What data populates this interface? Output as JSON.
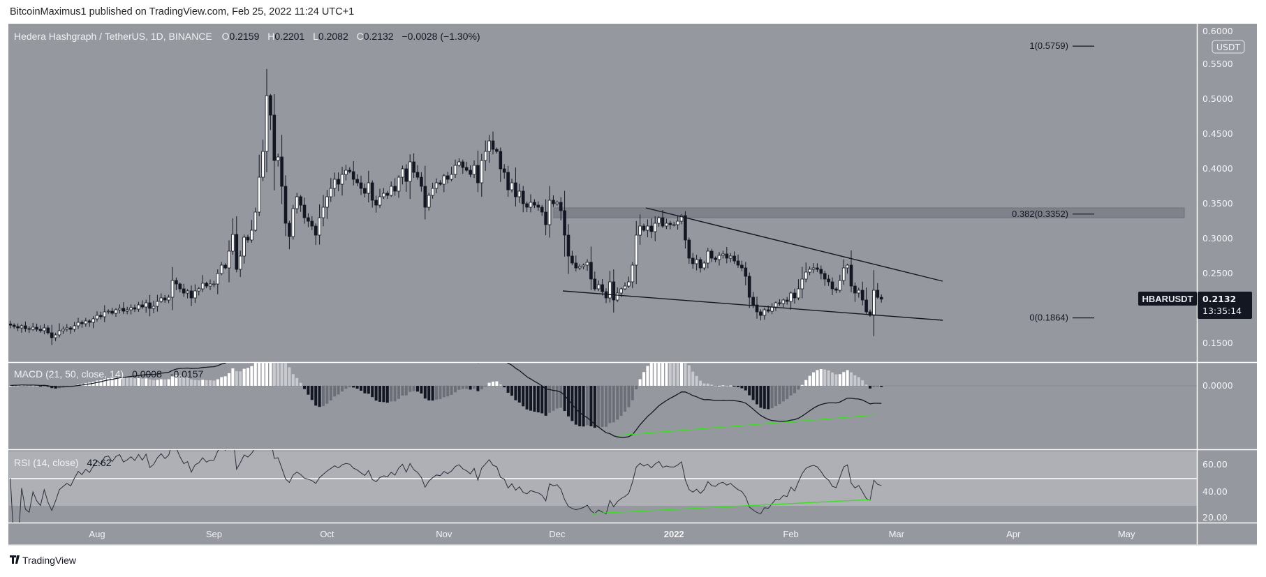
{
  "header": {
    "published": "BitcoinMaximus1 published on TradingView.com, Feb 25, 2022 11:24 UTC+1"
  },
  "footer": {
    "logo_text": "TradingView"
  },
  "legend": {
    "symbol": "Hedera Hashgraph / TetherUS, 1D, BINANCE",
    "o_label": "O",
    "o": "0.2159",
    "h_label": "H",
    "h": "0.2201",
    "l_label": "L",
    "l": "0.2082",
    "c_label": "C",
    "c": "0.2132",
    "change": "−0.0028 (−1.30%)"
  },
  "macd_legend": {
    "title": "MACD (21, 50, close, 14)",
    "v1": "0.0008",
    "v2": "-0.0157"
  },
  "rsi_legend": {
    "title": "RSI (14, close)",
    "value": "42.62"
  },
  "price_axis": {
    "currency": "USDT",
    "ticks": [
      "0.6000",
      "0.5500",
      "0.5000",
      "0.4500",
      "0.4000",
      "0.3500",
      "0.3000",
      "0.2500",
      "0.1500"
    ],
    "macd_ticks": [
      "0.0000"
    ],
    "rsi_ticks": [
      "60.00",
      "40.00",
      "20.00"
    ]
  },
  "last_price": {
    "symbol": "HBARUSDT",
    "price": "0.2132",
    "countdown": "13:35:14"
  },
  "time_axis": [
    "Aug",
    "Sep",
    "Oct",
    "Nov",
    "Dec",
    "2022",
    "Feb",
    "Mar",
    "Apr",
    "May"
  ],
  "fib_levels": [
    {
      "label": "1(0.5759)",
      "value": 0.5759
    },
    {
      "label": "0.382(0.3352)",
      "value": 0.3352
    },
    {
      "label": "0(0.1864)",
      "value": 0.1864
    }
  ],
  "colors": {
    "pane_bg": "#95989f",
    "up": "#ffffff",
    "down": "#131722",
    "divergence": "#39e01e",
    "rsi_band": "#aeb0b6"
  },
  "chart_data": {
    "type": "candlestick",
    "interval": "1D",
    "start_date": "2021-07-09",
    "end_date": "2022-02-25",
    "y_range": [
      0.13,
      0.6
    ],
    "scale": "linear",
    "last_candle": {
      "o": 0.2159,
      "h": 0.2201,
      "l": 0.2082,
      "c": 0.2132
    },
    "close": [
      0.176,
      0.174,
      0.172,
      0.175,
      0.171,
      0.17,
      0.173,
      0.17,
      0.168,
      0.172,
      0.165,
      0.158,
      0.162,
      0.168,
      0.17,
      0.172,
      0.17,
      0.175,
      0.18,
      0.178,
      0.182,
      0.18,
      0.185,
      0.19,
      0.188,
      0.195,
      0.196,
      0.193,
      0.198,
      0.2,
      0.196,
      0.198,
      0.201,
      0.199,
      0.205,
      0.202,
      0.208,
      0.2,
      0.203,
      0.21,
      0.215,
      0.212,
      0.216,
      0.24,
      0.235,
      0.228,
      0.222,
      0.225,
      0.215,
      0.225,
      0.228,
      0.236,
      0.232,
      0.235,
      0.235,
      0.25,
      0.262,
      0.258,
      0.282,
      0.306,
      0.256,
      0.275,
      0.302,
      0.298,
      0.312,
      0.338,
      0.388,
      0.425,
      0.505,
      0.477,
      0.412,
      0.417,
      0.375,
      0.322,
      0.303,
      0.343,
      0.36,
      0.348,
      0.33,
      0.325,
      0.318,
      0.305,
      0.33,
      0.345,
      0.36,
      0.372,
      0.385,
      0.378,
      0.392,
      0.398,
      0.396,
      0.385,
      0.38,
      0.372,
      0.365,
      0.38,
      0.355,
      0.348,
      0.36,
      0.365,
      0.362,
      0.375,
      0.368,
      0.388,
      0.4,
      0.382,
      0.41,
      0.395,
      0.388,
      0.375,
      0.345,
      0.362,
      0.372,
      0.38,
      0.378,
      0.39,
      0.385,
      0.392,
      0.405,
      0.41,
      0.402,
      0.398,
      0.392,
      0.405,
      0.38,
      0.412,
      0.425,
      0.44,
      0.428,
      0.425,
      0.4,
      0.395,
      0.37,
      0.38,
      0.36,
      0.368,
      0.35,
      0.345,
      0.352,
      0.348,
      0.345,
      0.338,
      0.32,
      0.355,
      0.35,
      0.352,
      0.34,
      0.305,
      0.275,
      0.265,
      0.258,
      0.26,
      0.262,
      0.266,
      0.242,
      0.228,
      0.234,
      0.224,
      0.215,
      0.238,
      0.212,
      0.222,
      0.228,
      0.232,
      0.238,
      0.262,
      0.305,
      0.318,
      0.312,
      0.318,
      0.31,
      0.322,
      0.33,
      0.318,
      0.322,
      0.32,
      0.32,
      0.325,
      0.333,
      0.298,
      0.272,
      0.264,
      0.27,
      0.258,
      0.265,
      0.282,
      0.272,
      0.27,
      0.276,
      0.278,
      0.272,
      0.275,
      0.268,
      0.262,
      0.258,
      0.246,
      0.216,
      0.205,
      0.195,
      0.19,
      0.198,
      0.196,
      0.202,
      0.208,
      0.207,
      0.212,
      0.21,
      0.222,
      0.215,
      0.228,
      0.242,
      0.252,
      0.256,
      0.258,
      0.256,
      0.25,
      0.242,
      0.238,
      0.228,
      0.226,
      0.24,
      0.258,
      0.262,
      0.232,
      0.222,
      0.226,
      0.212,
      0.195,
      0.19,
      0.226,
      0.2159,
      0.2132
    ],
    "resistance_zone": [
      0.3352,
      0.35
    ]
  }
}
